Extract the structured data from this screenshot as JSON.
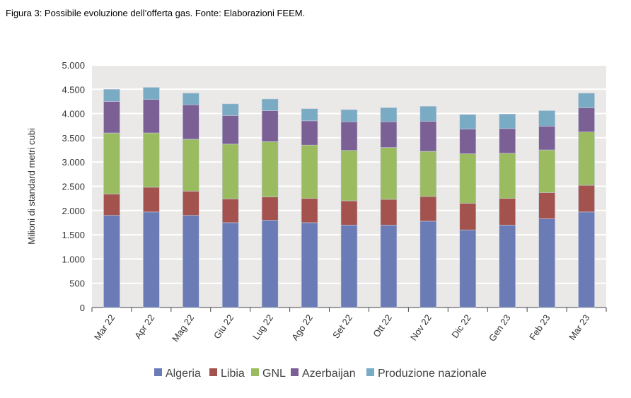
{
  "caption": "Figura 3: Possibile evoluzione dell’offerta gas. Fonte: Elaborazioni FEEM.",
  "chart_data": {
    "type": "bar",
    "stacked": true,
    "title": "",
    "xlabel": "",
    "ylabel": "Milioni di standard metri cubi",
    "ylim": [
      0,
      5000
    ],
    "yticks": [
      0,
      500,
      1000,
      1500,
      2000,
      2500,
      3000,
      3500,
      4000,
      4500,
      5000
    ],
    "ytick_labels": [
      "0",
      "500",
      "1.000",
      "1.500",
      "2.000",
      "2.500",
      "3.000",
      "3.500",
      "4.000",
      "4.500",
      "5.000"
    ],
    "categories": [
      "Mar 22",
      "Apr 22",
      "Mag 22",
      "Giu 22",
      "Lug 22",
      "Ago 22",
      "Set 22",
      "Ott 22",
      "Nov 22",
      "Dic 22",
      "Gen 23",
      "Feb 23",
      "Mar 23"
    ],
    "grid": true,
    "legend_position": "bottom",
    "series": [
      {
        "name": "Algeria",
        "color": "#6b7bb5",
        "values": [
          1900,
          1970,
          1900,
          1750,
          1800,
          1750,
          1700,
          1700,
          1780,
          1600,
          1700,
          1830,
          1970
        ]
      },
      {
        "name": "Libia",
        "color": "#a4524d",
        "values": [
          440,
          510,
          500,
          490,
          480,
          500,
          500,
          530,
          510,
          550,
          550,
          540,
          550
        ]
      },
      {
        "name": "GNL",
        "color": "#9bbb61",
        "values": [
          1260,
          1120,
          1070,
          1130,
          1140,
          1100,
          1040,
          1070,
          930,
          1020,
          930,
          880,
          1100
        ]
      },
      {
        "name": "Azerbaijan",
        "color": "#7b6096",
        "values": [
          650,
          690,
          710,
          590,
          640,
          500,
          590,
          530,
          620,
          510,
          510,
          490,
          500
        ]
      },
      {
        "name": "Produzione nazionale",
        "color": "#79abc4",
        "values": [
          250,
          250,
          240,
          240,
          240,
          250,
          250,
          290,
          310,
          300,
          300,
          320,
          300
        ]
      }
    ]
  }
}
